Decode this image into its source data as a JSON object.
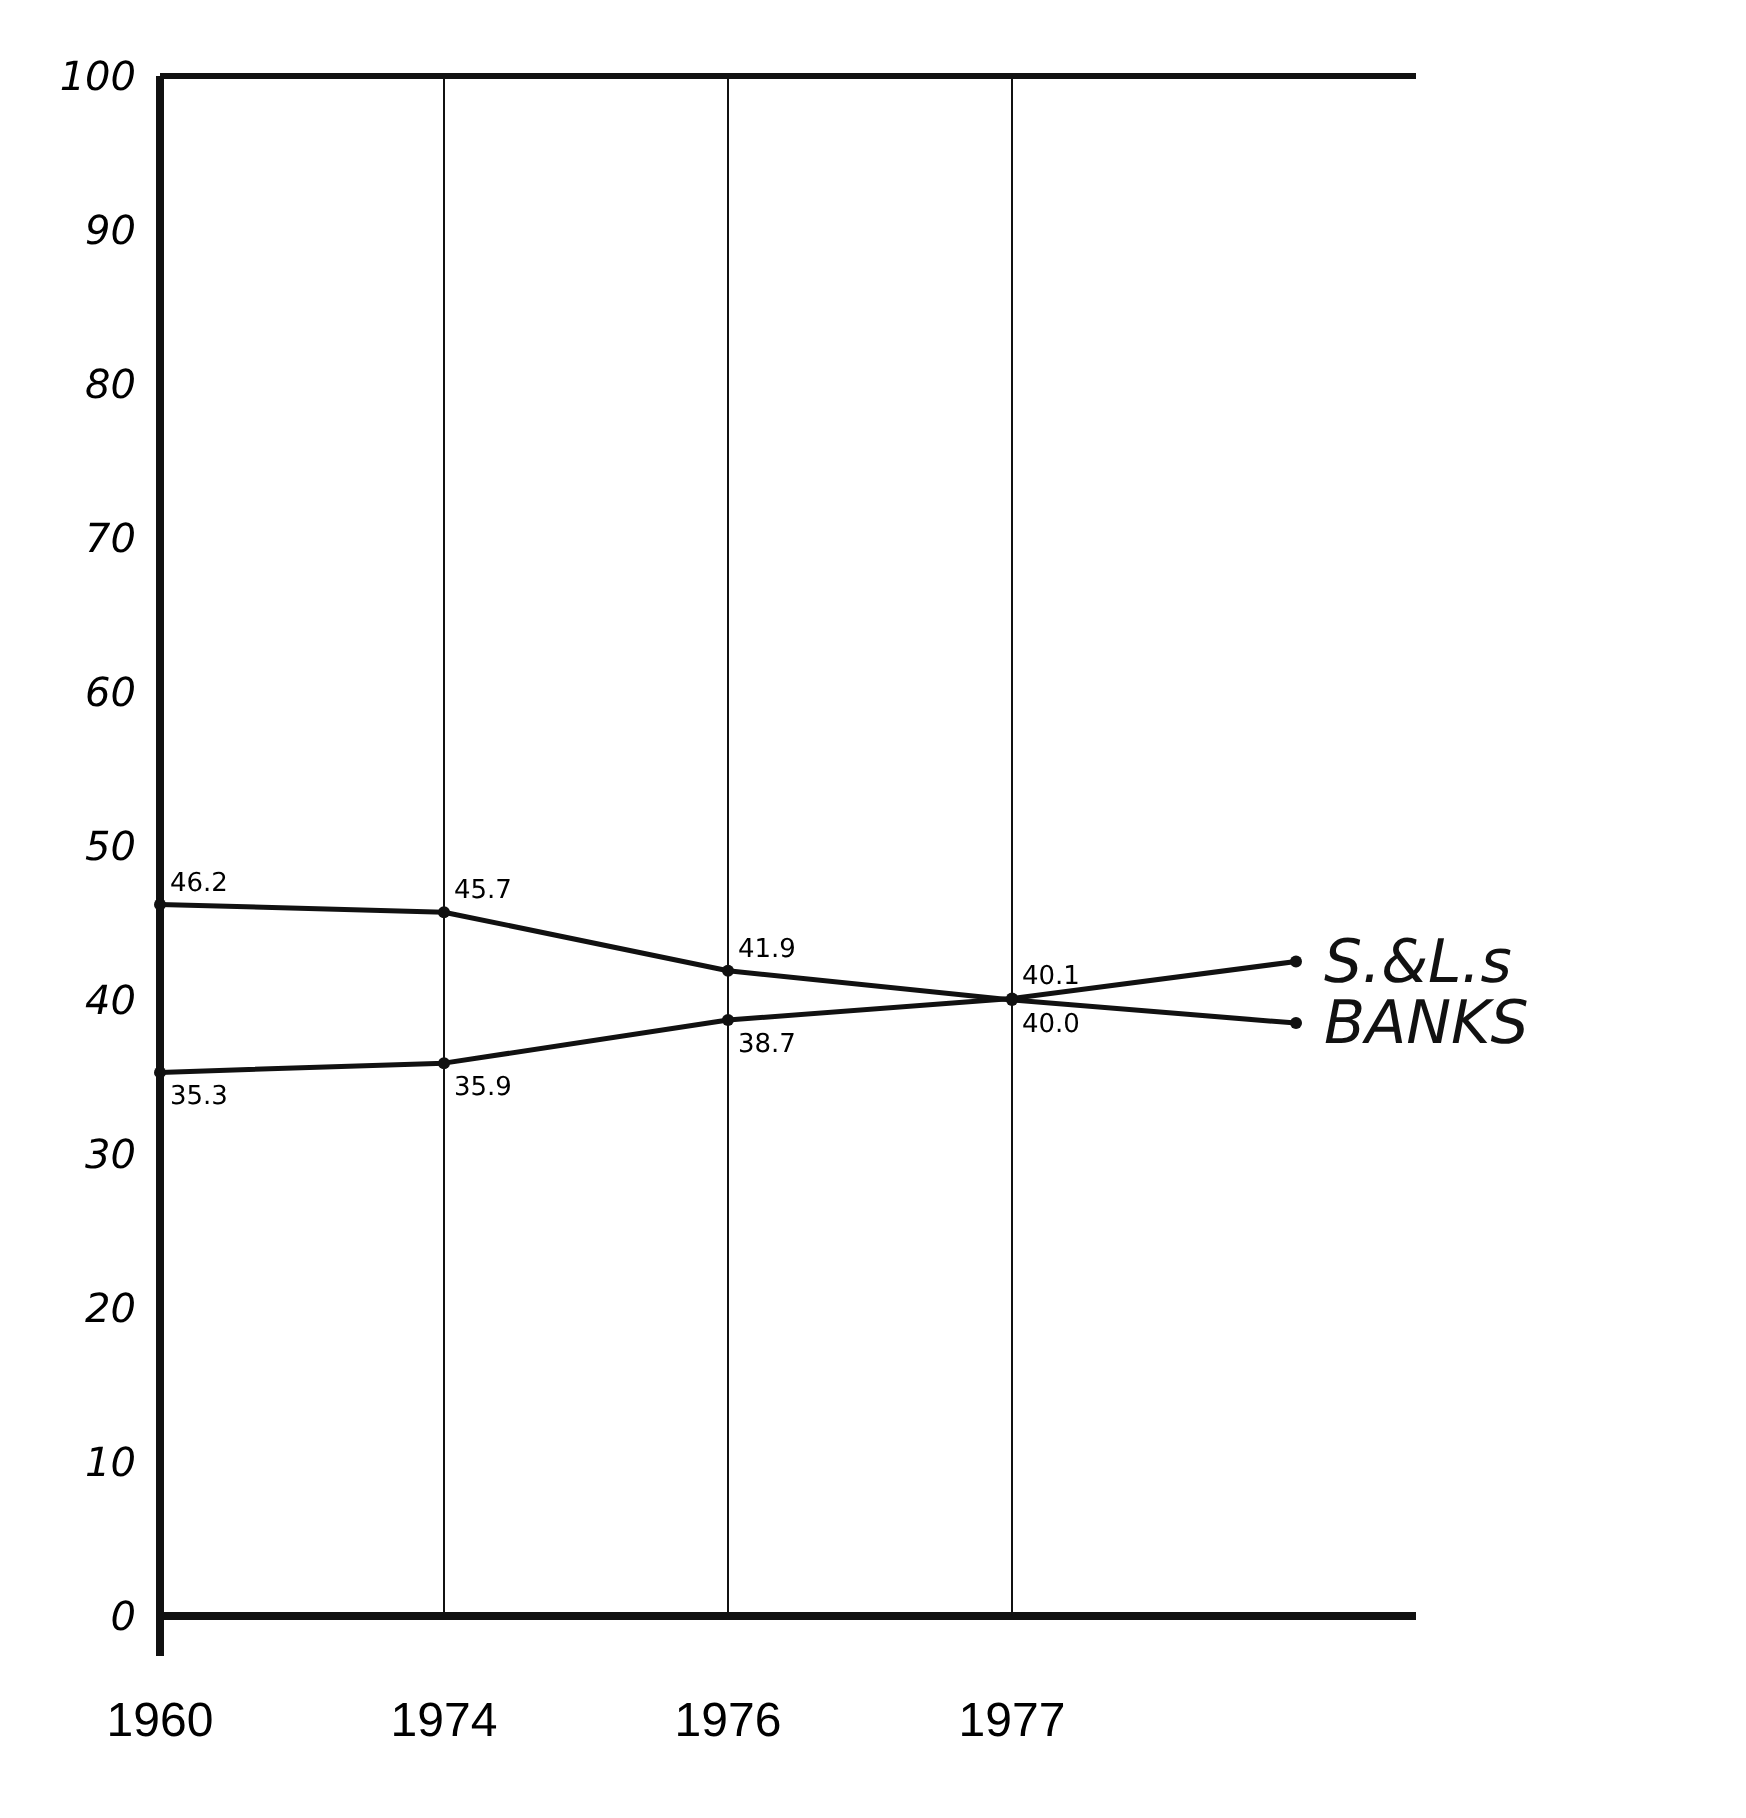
{
  "chart_data": {
    "type": "line",
    "categories": [
      "1960",
      "1974",
      "1976",
      "1977",
      null
    ],
    "series": [
      {
        "name": "S.&L.s",
        "color": "#111111",
        "values": [
          35.3,
          35.9,
          38.7,
          40.1,
          42.5
        ],
        "value_labels": [
          "35.3",
          "35.9",
          "38.7",
          "40.1",
          null
        ]
      },
      {
        "name": "BANKS",
        "color": "#111111",
        "values": [
          46.2,
          45.7,
          41.9,
          40.0,
          38.5
        ],
        "value_labels": [
          "46.2",
          "45.7",
          "41.9",
          "40.0",
          null
        ]
      }
    ],
    "ylim": [
      0,
      100
    ],
    "yticks": [
      0,
      10,
      20,
      30,
      40,
      50,
      60,
      70,
      80,
      90,
      100
    ],
    "grid": "x",
    "marker": "circle",
    "line_style": "solid",
    "legend": false
  }
}
